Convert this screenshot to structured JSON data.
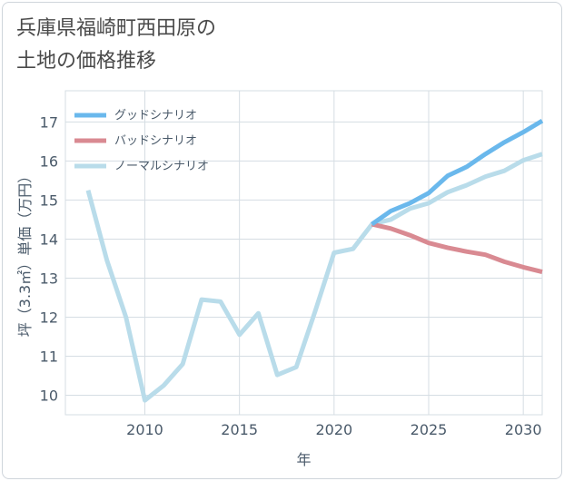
{
  "title_lines": [
    "兵庫県福崎町西田原の",
    "土地の価格推移"
  ],
  "chart_data": {
    "type": "line",
    "xlabel": "年",
    "ylabel": "坪（3.3㎡）単価（万円）",
    "xlim": [
      2005.8,
      2031
    ],
    "ylim": [
      9.5,
      17.8
    ],
    "xticks": [
      2010,
      2015,
      2020,
      2025,
      2030
    ],
    "yticks": [
      10,
      11,
      12,
      13,
      14,
      15,
      16,
      17
    ],
    "grid": true,
    "legend_position": "top-left",
    "series": [
      {
        "name": "グッドシナリオ",
        "color": "#6ab8ec",
        "x": [
          2022,
          2023,
          2024,
          2025,
          2026,
          2027,
          2028,
          2029,
          2030,
          2031
        ],
        "y": [
          14.38,
          14.72,
          14.92,
          15.18,
          15.62,
          15.85,
          16.18,
          16.48,
          16.74,
          17.03
        ]
      },
      {
        "name": "バッドシナリオ",
        "color": "#d98a92",
        "x": [
          2022,
          2023,
          2024,
          2025,
          2026,
          2027,
          2028,
          2029,
          2030,
          2031
        ],
        "y": [
          14.38,
          14.27,
          14.1,
          13.9,
          13.78,
          13.68,
          13.6,
          13.42,
          13.28,
          13.16
        ]
      },
      {
        "name": "ノーマルシナリオ",
        "color": "#b9dcea",
        "x": [
          2007,
          2008,
          2009,
          2010,
          2011,
          2012,
          2013,
          2014,
          2015,
          2016,
          2017,
          2018,
          2019,
          2020,
          2021,
          2022,
          2023,
          2024,
          2025,
          2026,
          2027,
          2028,
          2029,
          2030,
          2031
        ],
        "y": [
          15.25,
          13.45,
          12.0,
          9.87,
          10.25,
          10.8,
          12.45,
          12.4,
          11.55,
          12.1,
          10.52,
          10.72,
          12.15,
          13.65,
          13.75,
          14.38,
          14.5,
          14.78,
          14.92,
          15.2,
          15.38,
          15.6,
          15.75,
          16.02,
          16.18
        ]
      }
    ]
  }
}
